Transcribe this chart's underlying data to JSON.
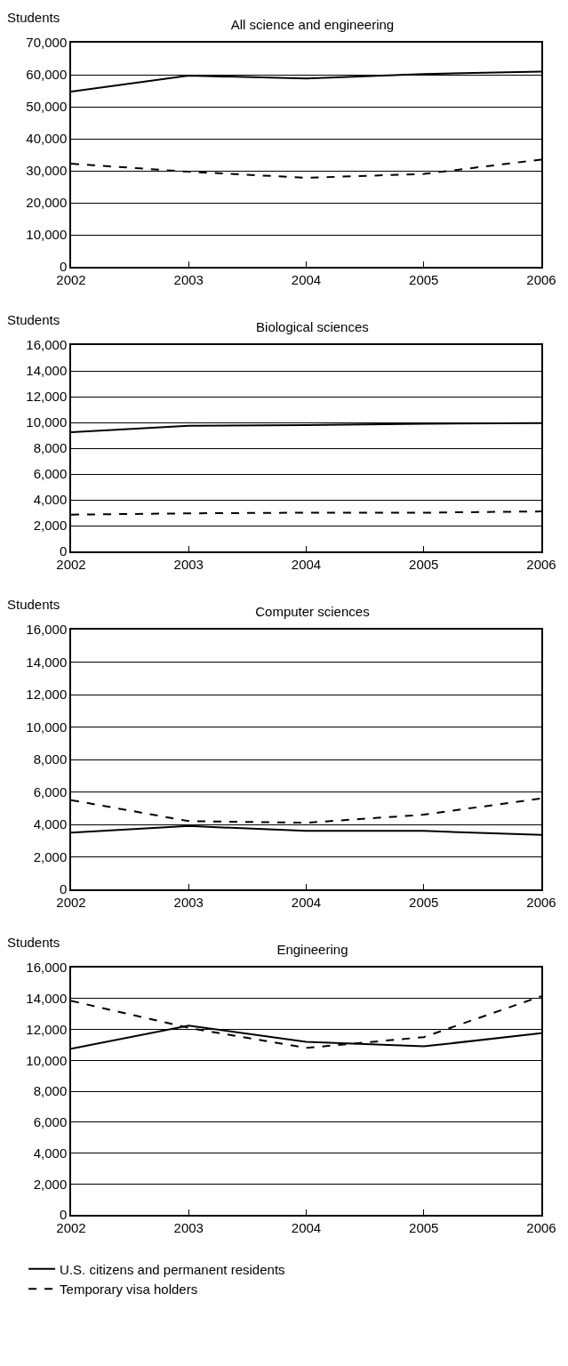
{
  "chart_data": [
    {
      "type": "line",
      "title": "All science and engineering",
      "ylabel": "Students",
      "x": [
        2002,
        2003,
        2004,
        2005,
        2006
      ],
      "xlim": [
        2002,
        2006
      ],
      "xticks": [
        2002,
        2003,
        2004,
        2005,
        2006
      ],
      "ylim": [
        0,
        70000
      ],
      "yticks": [
        {
          "value": 0,
          "label": "0"
        },
        {
          "value": 10000,
          "label": "10,000"
        },
        {
          "value": 20000,
          "label": "20,000"
        },
        {
          "value": 30000,
          "label": "30,000"
        },
        {
          "value": 40000,
          "label": "40,000"
        },
        {
          "value": 50000,
          "label": "50,000"
        },
        {
          "value": 60000,
          "label": "60,000"
        },
        {
          "value": 70000,
          "label": "70,000"
        }
      ],
      "grid": "y",
      "legend": false,
      "marker": "none",
      "series": [
        {
          "color": "#000000",
          "line_style": "solid",
          "values": [
            54700,
            59700,
            58800,
            60200,
            61000
          ]
        },
        {
          "color": "#000000",
          "line_style": "dashed",
          "values": [
            32200,
            29700,
            27800,
            29000,
            33500
          ]
        }
      ]
    },
    {
      "type": "line",
      "title": "Biological sciences",
      "ylabel": "Students",
      "x": [
        2002,
        2003,
        2004,
        2005,
        2006
      ],
      "xlim": [
        2002,
        2006
      ],
      "xticks": [
        2002,
        2003,
        2004,
        2005,
        2006
      ],
      "ylim": [
        0,
        16000
      ],
      "yticks": [
        {
          "value": 0,
          "label": "0"
        },
        {
          "value": 2000,
          "label": "2,000"
        },
        {
          "value": 4000,
          "label": "4,000"
        },
        {
          "value": 6000,
          "label": "6,000"
        },
        {
          "value": 8000,
          "label": "8,000"
        },
        {
          "value": 10000,
          "label": "10,000"
        },
        {
          "value": 12000,
          "label": "12,000"
        },
        {
          "value": 14000,
          "label": "14,000"
        },
        {
          "value": 16000,
          "label": "16,000"
        }
      ],
      "grid": "y",
      "legend": false,
      "marker": "none",
      "series": [
        {
          "color": "#000000",
          "line_style": "solid",
          "values": [
            9250,
            9750,
            9800,
            9900,
            9950
          ]
        },
        {
          "color": "#000000",
          "line_style": "dashed",
          "values": [
            2850,
            2950,
            3000,
            3000,
            3100
          ]
        }
      ]
    },
    {
      "type": "line",
      "title": "Computer sciences",
      "ylabel": "Students",
      "x": [
        2002,
        2003,
        2004,
        2005,
        2006
      ],
      "xlim": [
        2002,
        2006
      ],
      "xticks": [
        2002,
        2003,
        2004,
        2005,
        2006
      ],
      "ylim": [
        0,
        16000
      ],
      "yticks": [
        {
          "value": 0,
          "label": "0"
        },
        {
          "value": 2000,
          "label": "2,000"
        },
        {
          "value": 4000,
          "label": "4,000"
        },
        {
          "value": 6000,
          "label": "6,000"
        },
        {
          "value": 8000,
          "label": "8,000"
        },
        {
          "value": 10000,
          "label": "10,000"
        },
        {
          "value": 12000,
          "label": "12,000"
        },
        {
          "value": 14000,
          "label": "14,000"
        },
        {
          "value": 16000,
          "label": "16,000"
        }
      ],
      "grid": "y",
      "legend": false,
      "marker": "none",
      "series": [
        {
          "color": "#000000",
          "line_style": "solid",
          "values": [
            3500,
            3900,
            3600,
            3600,
            3350
          ]
        },
        {
          "color": "#000000",
          "line_style": "dashed",
          "values": [
            5500,
            4200,
            4100,
            4600,
            5600
          ]
        }
      ]
    },
    {
      "type": "line",
      "title": "Engineering",
      "ylabel": "Students",
      "x": [
        2002,
        2003,
        2004,
        2005,
        2006
      ],
      "xlim": [
        2002,
        2006
      ],
      "xticks": [
        2002,
        2003,
        2004,
        2005,
        2006
      ],
      "ylim": [
        0,
        16000
      ],
      "yticks": [
        {
          "value": 0,
          "label": "0"
        },
        {
          "value": 2000,
          "label": "2,000"
        },
        {
          "value": 4000,
          "label": "4,000"
        },
        {
          "value": 6000,
          "label": "6,000"
        },
        {
          "value": 8000,
          "label": "8,000"
        },
        {
          "value": 10000,
          "label": "10,000"
        },
        {
          "value": 12000,
          "label": "12,000"
        },
        {
          "value": 14000,
          "label": "14,000"
        },
        {
          "value": 16000,
          "label": "16,000"
        }
      ],
      "grid": "y",
      "legend": "bottom",
      "marker": "none",
      "series": [
        {
          "name": "U.S. citizens and permanent residents",
          "color": "#000000",
          "line_style": "solid",
          "values": [
            10750,
            12250,
            11200,
            10900,
            11750
          ]
        },
        {
          "name": "Temporary visa holders",
          "color": "#000000",
          "line_style": "dashed",
          "values": [
            13850,
            12100,
            10800,
            11500,
            14150
          ]
        }
      ]
    }
  ]
}
